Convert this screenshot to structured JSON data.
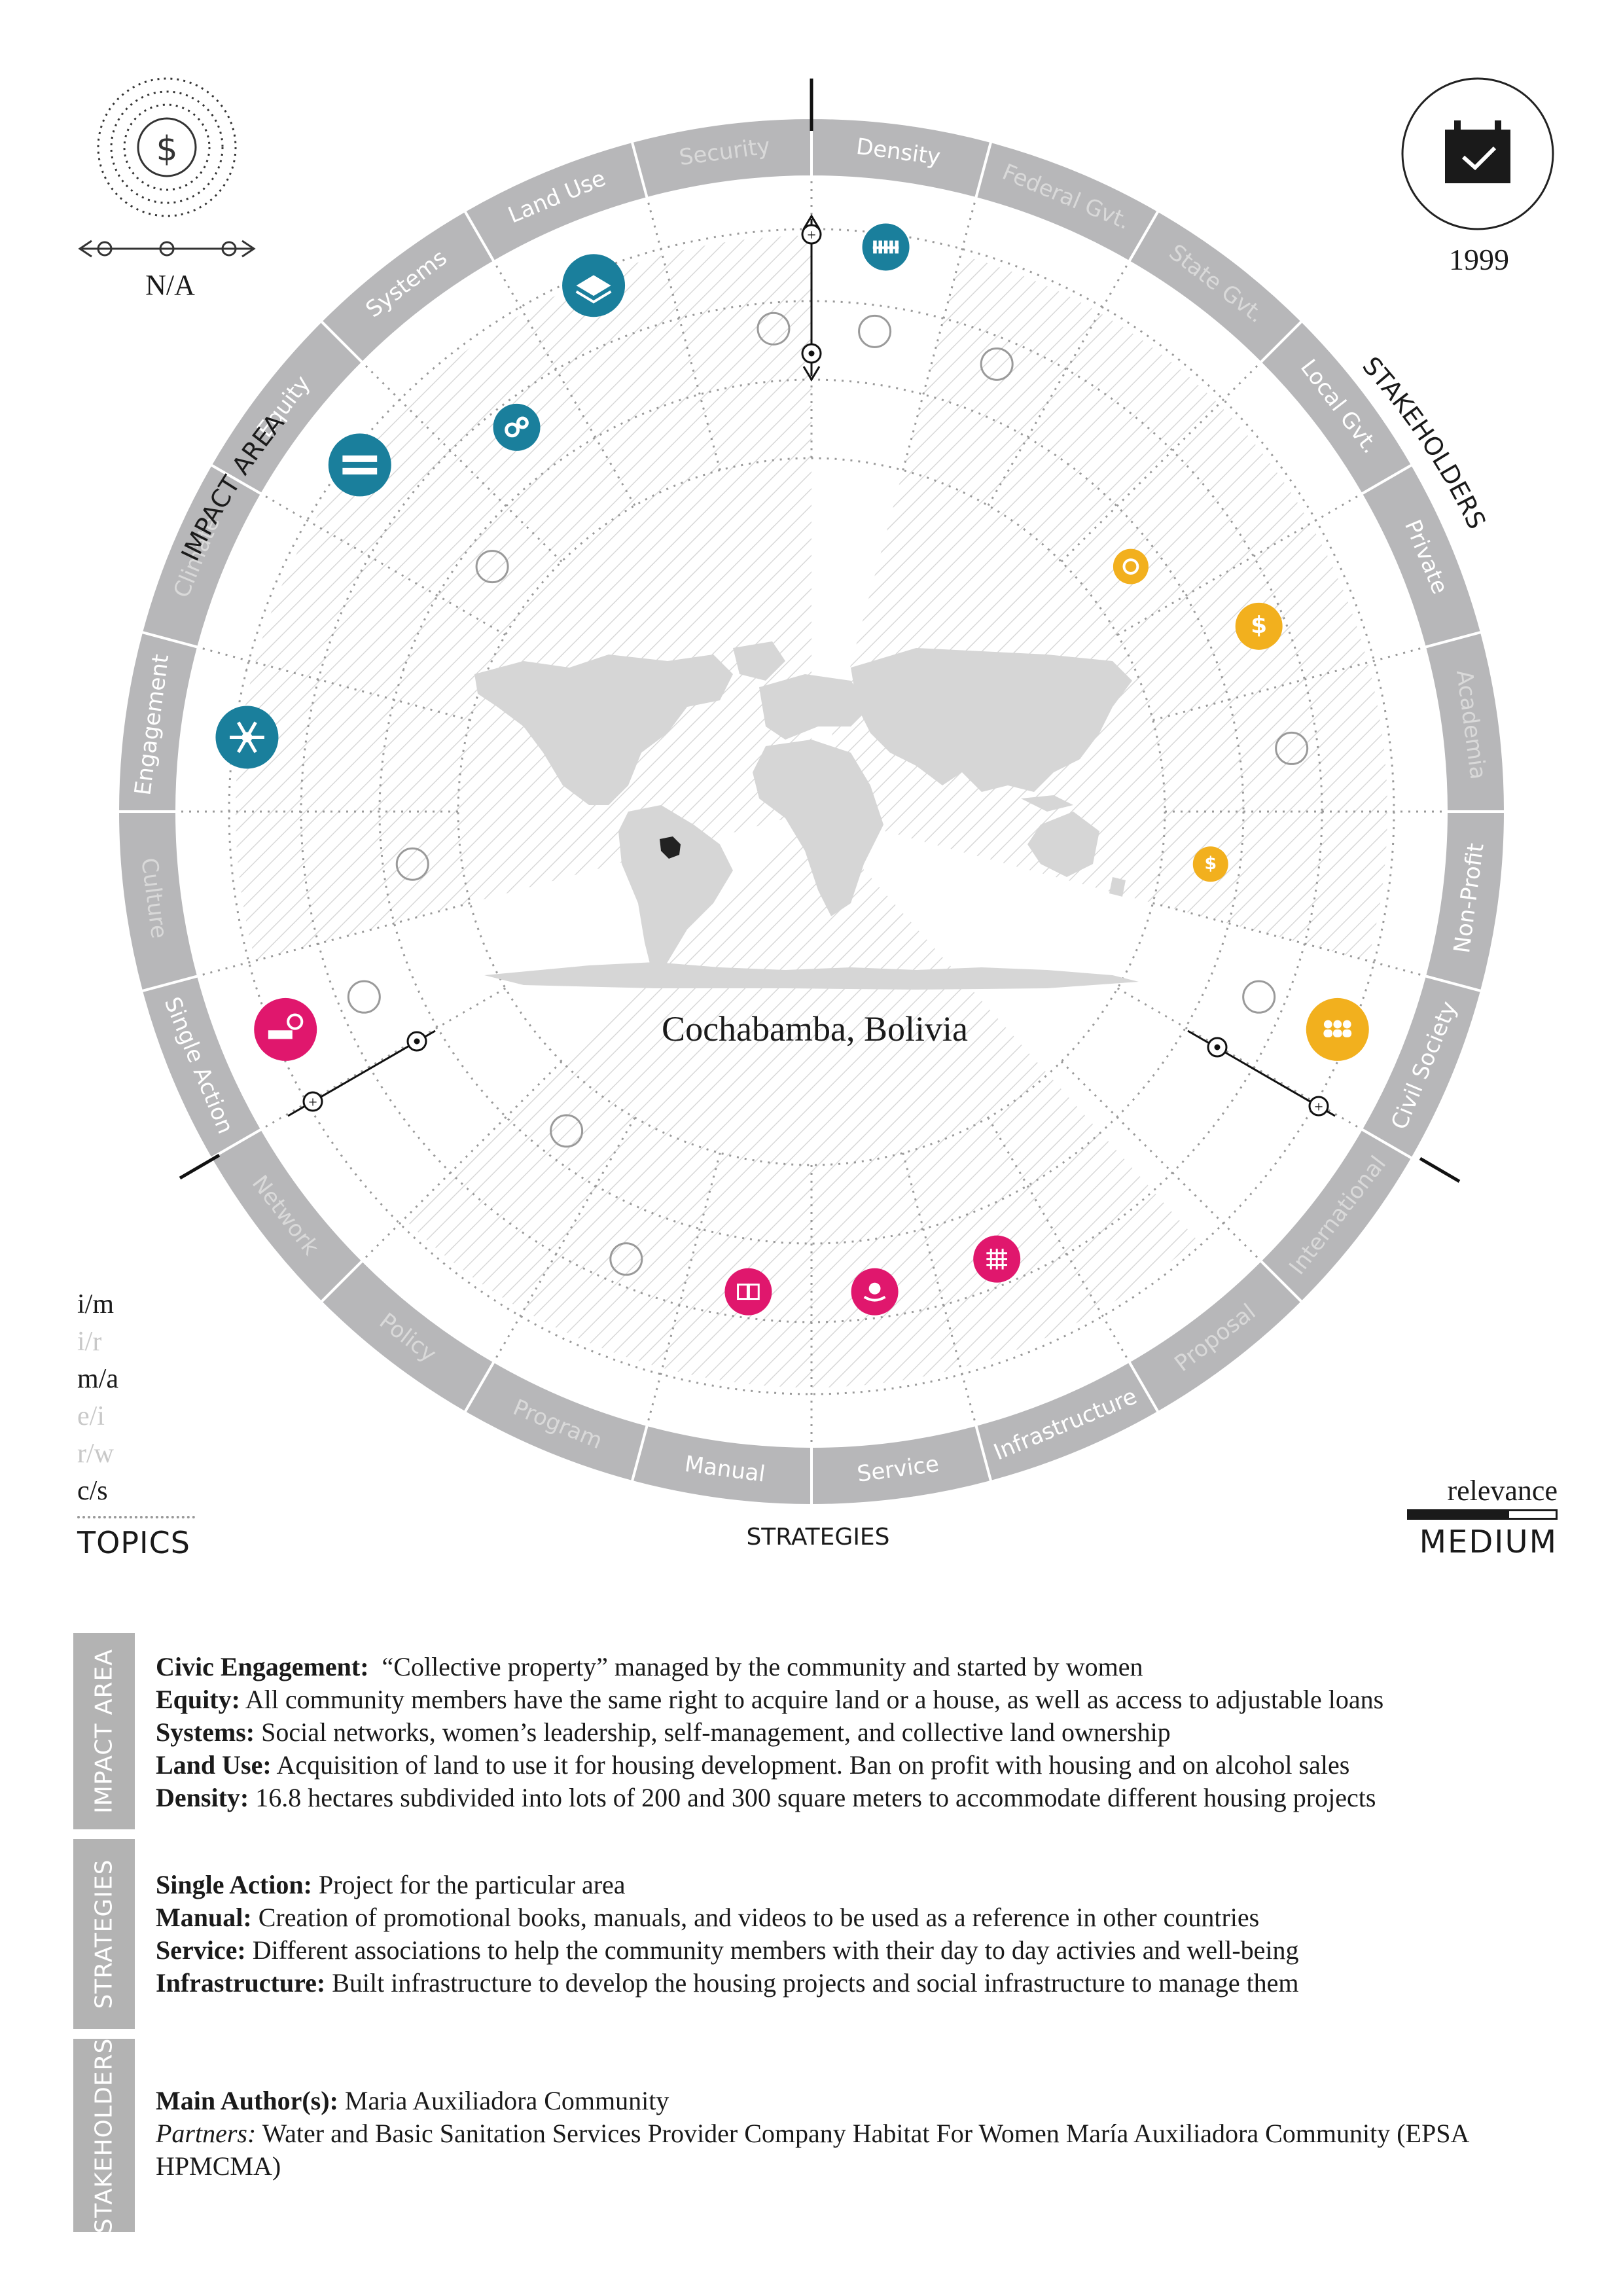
{
  "cost": {
    "label": "N/A"
  },
  "year": {
    "label": "1999"
  },
  "location": {
    "label": "Cochabamba, Bolivia"
  },
  "axis_titles": {
    "impact_area": "IMPACT AREA",
    "stakeholders": "STAKEHOLDERS",
    "strategies": "STRATEGIES",
    "topics": "TOPICS"
  },
  "ring_segments": [
    {
      "label": "Density",
      "active": true
    },
    {
      "label": "Federal Gvt.",
      "active": false
    },
    {
      "label": "State Gvt.",
      "active": false
    },
    {
      "label": "Local Gvt.",
      "active": true
    },
    {
      "label": "Private",
      "active": true
    },
    {
      "label": "Academia",
      "active": false
    },
    {
      "label": "Non-Profit",
      "active": true
    },
    {
      "label": "Civil Society",
      "active": true
    },
    {
      "label": "International",
      "active": false
    },
    {
      "label": "Proposal",
      "active": false
    },
    {
      "label": "Infrastructure",
      "active": true
    },
    {
      "label": "Service",
      "active": true
    },
    {
      "label": "Manual",
      "active": true
    },
    {
      "label": "Program",
      "active": false
    },
    {
      "label": "Policy",
      "active": false
    },
    {
      "label": "Network",
      "active": false
    },
    {
      "label": "Single Action",
      "active": true
    },
    {
      "label": "Culture",
      "active": false
    },
    {
      "label": "Engagement",
      "active": true
    },
    {
      "label": "Climate",
      "active": false
    },
    {
      "label": "Equity",
      "active": true
    },
    {
      "label": "Systems",
      "active": true
    },
    {
      "label": "Land Use",
      "active": true
    },
    {
      "label": "Security",
      "active": false
    }
  ],
  "markers": [
    {
      "segment": "Density",
      "level": 1,
      "size": "small",
      "color": "#1a7f9c",
      "icon": "fence-icon"
    },
    {
      "segment": "Land Use",
      "level": 1,
      "size": "medium",
      "color": "#1a7f9c",
      "icon": "layers-icon"
    },
    {
      "segment": "Systems",
      "level": 2,
      "size": "small",
      "color": "#1a7f9c",
      "icon": "gears-icon"
    },
    {
      "segment": "Equity",
      "level": 1,
      "size": "medium",
      "color": "#1a7f9c",
      "icon": "equals-icon"
    },
    {
      "segment": "Engagement",
      "level": 1,
      "size": "medium",
      "color": "#1a7f9c",
      "icon": "snowflake-icon"
    },
    {
      "segment": "Local Gvt.",
      "level": 3,
      "size": "xsmall",
      "color": "#f2b01e",
      "icon": "chat-icon"
    },
    {
      "segment": "Private",
      "level": 2,
      "size": "small",
      "color": "#f2b01e",
      "icon": "dollar-icon"
    },
    {
      "segment": "Non-Profit",
      "level": 3,
      "size": "xsmall",
      "color": "#f2b01e",
      "icon": "dollar-icon"
    },
    {
      "segment": "Civil Society",
      "level": 1,
      "size": "medium",
      "color": "#f2b01e",
      "icon": "people-icon"
    },
    {
      "segment": "Single Action",
      "level": 1,
      "size": "medium",
      "color": "#e0176d",
      "icon": "bed-icon"
    },
    {
      "segment": "Infrastructure",
      "level": 2,
      "size": "small",
      "color": "#e0176d",
      "icon": "grid-icon"
    },
    {
      "segment": "Service",
      "level": 2,
      "size": "small",
      "color": "#e0176d",
      "icon": "hand-gear-icon"
    },
    {
      "segment": "Manual",
      "level": 2,
      "size": "small",
      "color": "#e0176d",
      "icon": "book-icon"
    }
  ],
  "topics": [
    {
      "code": "i/m",
      "active": true
    },
    {
      "code": "i/r",
      "active": false
    },
    {
      "code": "m/a",
      "active": true
    },
    {
      "code": "e/i",
      "active": false
    },
    {
      "code": "r/w",
      "active": false
    },
    {
      "code": "c/s",
      "active": true
    }
  ],
  "relevance": {
    "label": "relevance",
    "level": "MEDIUM",
    "filled_blocks": 2,
    "total_blocks": 3
  },
  "colors": {
    "impact": "#1a7f9c",
    "stakeholders": "#f2b01e",
    "strategies": "#e0176d",
    "ring": "#b7b7b9",
    "ring_inactive_text": "#d9d9d9"
  },
  "details": {
    "impact_area": {
      "tab": "IMPACT AREA",
      "items": [
        {
          "term": "Civic Engagement:",
          "text": "“Collective property” managed by the community and started by women"
        },
        {
          "term": "Equity:",
          "text": "All community members have the same right to acquire land or a house, as well as access to adjustable loans"
        },
        {
          "term": "Systems:",
          "text": "Social networks, women’s leadership, self-management, and collective land ownership"
        },
        {
          "term": "Land Use:",
          "text": "Acquisition of land to use it for housing development. Ban on profit with housing and on alcohol sales"
        },
        {
          "term": "Density:",
          "text": "16.8 hectares subdivided into lots of 200 and 300 square meters to accommodate different housing projects"
        }
      ]
    },
    "strategies": {
      "tab": "STRATEGIES",
      "items": [
        {
          "term": "Single Action:",
          "text": "Project for the particular area"
        },
        {
          "term": "Manual:",
          "text": "Creation of promotional books, manuals, and videos to be used as a reference in other countries"
        },
        {
          "term": "Service:",
          "text": "Different associations to help the community members with their day to day activies and well-being"
        },
        {
          "term": "Infrastructure:",
          "text": "Built infrastructure to develop the housing projects and social infrastructure to manage them"
        }
      ]
    },
    "stakeholders": {
      "tab": "STAKEHOLDERS",
      "main_author_label": "Main Author(s):",
      "main_author": "Maria Auxiliadora Community",
      "partners_label": "Partners:",
      "partners": "Water and Basic Sanitation Services Provider Company Habitat For Women María Auxiliadora Community (EPSA HPMCMA)"
    }
  }
}
